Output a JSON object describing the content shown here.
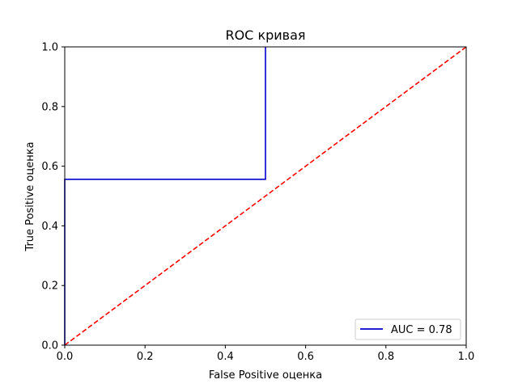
{
  "chart_data": {
    "type": "line",
    "title": "ROC кривая",
    "xlabel": "False Positive оценка",
    "ylabel": "True Positive оценка",
    "xlim": [
      0,
      1
    ],
    "ylim": [
      0,
      1
    ],
    "xticks": [
      "0.0",
      "0.2",
      "0.4",
      "0.6",
      "0.8",
      "1.0"
    ],
    "yticks": [
      "0.0",
      "0.2",
      "0.4",
      "0.6",
      "0.8",
      "1.0"
    ],
    "grid": false,
    "legend_position": "lower-right",
    "series": [
      {
        "name": "AUC = 0.78",
        "color": "#0000cc",
        "linestyle": "solid",
        "x": [
          0.0,
          0.0,
          0.5,
          0.5
        ],
        "y": [
          0.0,
          0.556,
          0.556,
          1.0
        ]
      },
      {
        "color": "#ff0000",
        "linestyle": "dashed",
        "x": [
          0.0,
          1.0
        ],
        "y": [
          0.0,
          1.0
        ]
      }
    ]
  }
}
